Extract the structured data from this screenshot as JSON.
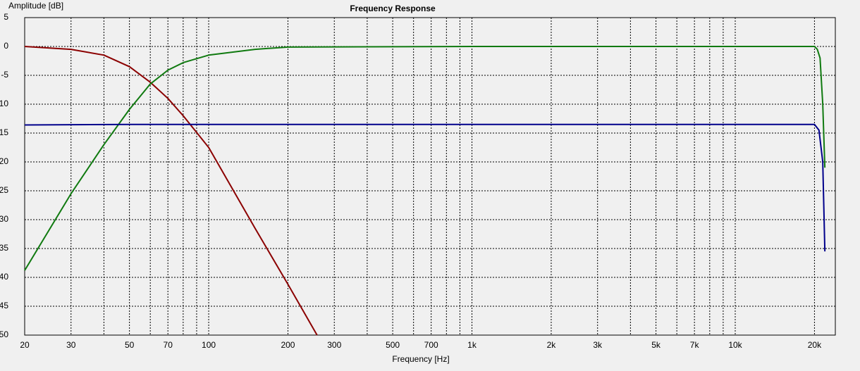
{
  "chart_data": {
    "type": "line",
    "title": "Frequency Response",
    "x_label": "Frequency [Hz]",
    "y_label": "Amplitude [dB]",
    "xscale": "log",
    "xlim": [
      20,
      24000
    ],
    "ylim": [
      -50,
      5
    ],
    "grid": true,
    "xticks": [
      20,
      30,
      50,
      70,
      100,
      200,
      300,
      500,
      700,
      {
        "value": 1000,
        "label": "1k"
      },
      {
        "value": 2000,
        "label": "2k"
      },
      {
        "value": 3000,
        "label": "3k"
      },
      {
        "value": 5000,
        "label": "5k"
      },
      {
        "value": 7000,
        "label": "7k"
      },
      {
        "value": 10000,
        "label": "10k"
      },
      {
        "value": 20000,
        "label": "20k"
      }
    ],
    "xminor": [
      40,
      60,
      80,
      90,
      400,
      600,
      800,
      900,
      4000,
      6000,
      8000,
      9000
    ],
    "yticks": [
      5,
      0,
      -5,
      -10,
      -15,
      -20,
      -25,
      -30,
      -35,
      -40,
      -45,
      -50
    ],
    "series": [
      {
        "color": "#8b0000",
        "x": [
          20,
          30,
          40,
          50,
          60,
          70,
          80,
          100,
          150,
          200,
          258
        ],
        "values": [
          0,
          -0.5,
          -1.5,
          -3.5,
          -6.2,
          -9,
          -12,
          -17.5,
          -31.5,
          -41.2,
          -50
        ]
      },
      {
        "color": "#107a10",
        "x": [
          20,
          30,
          40,
          50,
          60,
          70,
          80,
          100,
          150,
          200,
          1000,
          10000,
          20000,
          20500,
          21000,
          21500,
          21900
        ],
        "values": [
          -38.8,
          -25.5,
          -17,
          -10.9,
          -6.5,
          -4.1,
          -2.8,
          -1.5,
          -0.5,
          -0.1,
          0,
          0,
          0,
          -0.5,
          -2,
          -10,
          -21
        ]
      },
      {
        "color": "#00008b",
        "x": [
          20,
          50,
          1000,
          10000,
          20000,
          20800,
          21500,
          21900
        ],
        "values": [
          -13.6,
          -13.5,
          -13.5,
          -13.5,
          -13.5,
          -14.5,
          -20,
          -35.5
        ]
      }
    ]
  }
}
